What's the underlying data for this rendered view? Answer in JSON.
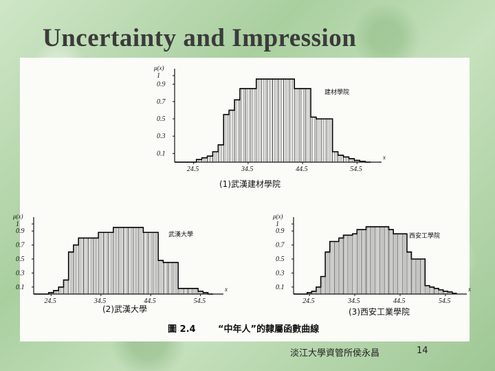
{
  "slide": {
    "title": "Uncertainty and Impression",
    "footer_author": "淡江大學資管所侯永昌",
    "page_number": "14"
  },
  "figure": {
    "caption_label": "圖 2.4",
    "caption_text": "“中年人”的隸屬函數曲線"
  },
  "chart_data": [
    {
      "type": "bar",
      "subtitle": "(1)武漢建材學院",
      "legend": "建材學院",
      "ylabel": "μ(x)",
      "xlabel": "x",
      "y_ticks": [
        "0.1",
        "0.3",
        "0.5",
        "0.7",
        "0.9",
        "1"
      ],
      "x_ticks": [
        "24.5",
        "34.5",
        "44.5",
        "54.5"
      ],
      "ylim": [
        0,
        1
      ],
      "xlim": [
        21,
        58
      ],
      "x": [
        21.5,
        22.5,
        23.5,
        24.5,
        25.5,
        26.5,
        27.5,
        28.5,
        29.5,
        30.5,
        31.5,
        32.5,
        33.5,
        34.5,
        35.5,
        36.5,
        37.5,
        38.5,
        39.5,
        40.5,
        41.5,
        42.5,
        43.5,
        44.5,
        45.5,
        46.5,
        47.5,
        48.5,
        49.5,
        50.5,
        51.5,
        52.5,
        53.5,
        54.5,
        55.5,
        56.5
      ],
      "values": [
        0,
        0,
        0,
        0,
        0.03,
        0.05,
        0.07,
        0.12,
        0.2,
        0.55,
        0.6,
        0.72,
        0.85,
        0.85,
        0.85,
        0.96,
        0.96,
        0.96,
        0.96,
        0.96,
        0.96,
        0.96,
        0.85,
        0.85,
        0.85,
        0.52,
        0.5,
        0.5,
        0.5,
        0.12,
        0.08,
        0.06,
        0.04,
        0.02,
        0.01,
        0
      ]
    },
    {
      "type": "bar",
      "subtitle": "(2)武漢大學",
      "legend": "武漢大學",
      "ylabel": "μ(x)",
      "xlabel": "x",
      "y_ticks": [
        "0.1",
        "0.3",
        "0.5",
        "0.7",
        "0.9",
        "1"
      ],
      "x_ticks": [
        "24.5",
        "34.5",
        "44.5",
        "54.5"
      ],
      "ylim": [
        0,
        1
      ],
      "xlim": [
        21,
        58
      ],
      "x": [
        21.5,
        22.5,
        23.5,
        24.5,
        25.5,
        26.5,
        27.5,
        28.5,
        29.5,
        30.5,
        31.5,
        32.5,
        33.5,
        34.5,
        35.5,
        36.5,
        37.5,
        38.5,
        39.5,
        40.5,
        41.5,
        42.5,
        43.5,
        44.5,
        45.5,
        46.5,
        47.5,
        48.5,
        49.5,
        50.5,
        51.5,
        52.5,
        53.5,
        54.5,
        55.5,
        56.5
      ],
      "values": [
        0,
        0,
        0,
        0.02,
        0.05,
        0.1,
        0.2,
        0.6,
        0.7,
        0.8,
        0.8,
        0.8,
        0.8,
        0.88,
        0.88,
        0.88,
        0.95,
        0.95,
        0.95,
        0.95,
        0.95,
        0.95,
        0.88,
        0.88,
        0.88,
        0.48,
        0.45,
        0.45,
        0.45,
        0.08,
        0.08,
        0.08,
        0.08,
        0.04,
        0.02,
        0
      ]
    },
    {
      "type": "bar",
      "subtitle": "(3)西安工業學院",
      "legend": "西安工學院",
      "ylabel": "μ(x)",
      "xlabel": "x",
      "y_ticks": [
        "0.1",
        "0.3",
        "0.5",
        "0.7",
        "0.9",
        "1"
      ],
      "x_ticks": [
        "24.5",
        "34.5",
        "44.5",
        "54.5"
      ],
      "ylim": [
        0,
        1
      ],
      "xlim": [
        21,
        58
      ],
      "x": [
        21.5,
        22.5,
        23.5,
        24.5,
        25.5,
        26.5,
        27.5,
        28.5,
        29.5,
        30.5,
        31.5,
        32.5,
        33.5,
        34.5,
        35.5,
        36.5,
        37.5,
        38.5,
        39.5,
        40.5,
        41.5,
        42.5,
        43.5,
        44.5,
        45.5,
        46.5,
        47.5,
        48.5,
        49.5,
        50.5,
        51.5,
        52.5,
        53.5,
        54.5,
        55.5,
        56.5
      ],
      "values": [
        0,
        0,
        0,
        0.02,
        0.04,
        0.1,
        0.25,
        0.6,
        0.75,
        0.75,
        0.8,
        0.84,
        0.84,
        0.86,
        0.92,
        0.92,
        0.96,
        0.96,
        0.96,
        0.96,
        0.96,
        0.92,
        0.86,
        0.86,
        0.86,
        0.6,
        0.5,
        0.5,
        0.5,
        0.12,
        0.1,
        0.08,
        0.06,
        0.04,
        0.03,
        0.01
      ]
    }
  ]
}
